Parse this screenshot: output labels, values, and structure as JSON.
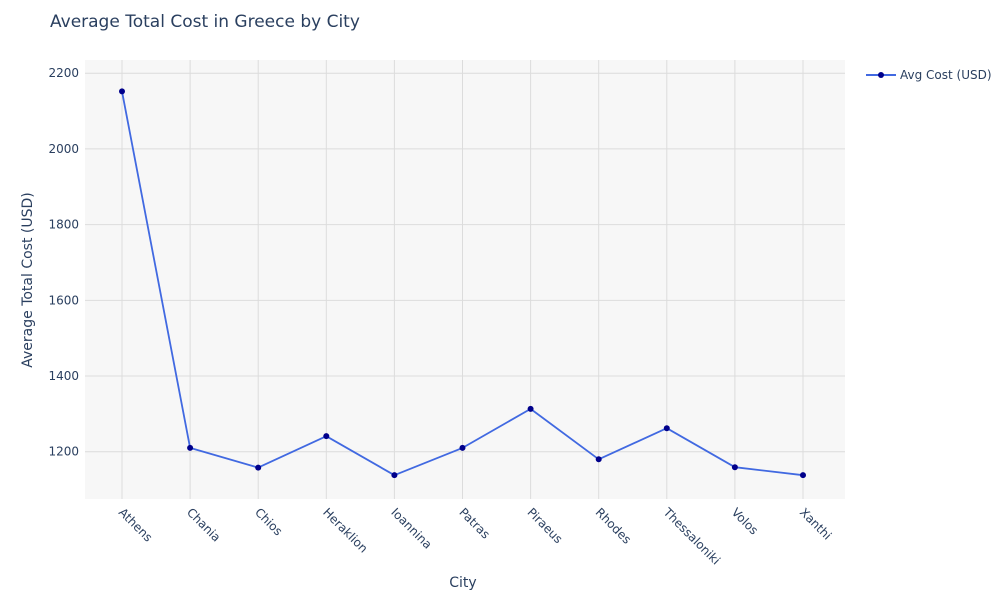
{
  "chart_data": {
    "type": "line",
    "title": "Average Total Cost in Greece by City",
    "xlabel": "City",
    "ylabel": "Average Total Cost (USD)",
    "categories": [
      "Athens",
      "Chania",
      "Chios",
      "Heraklion",
      "Ioannina",
      "Patras",
      "Piraeus",
      "Rhodes",
      "Thessaloniki",
      "Volos",
      "Xanthi"
    ],
    "series": [
      {
        "name": "Avg Cost (USD)",
        "values": [
          2152,
          1210,
          1158,
          1241,
          1138,
          1210,
          1313,
          1180,
          1262,
          1159,
          1138
        ]
      }
    ],
    "ylim": [
      1075,
      2235
    ],
    "yticks": [
      1200,
      1400,
      1600,
      1800,
      2000,
      2200
    ],
    "grid": true,
    "legend_position": "top-right",
    "colors": {
      "line": "#4169e1",
      "marker": "#00008b",
      "plot_bg": "#f7f7f7",
      "grid": "#dcdcdc"
    }
  }
}
